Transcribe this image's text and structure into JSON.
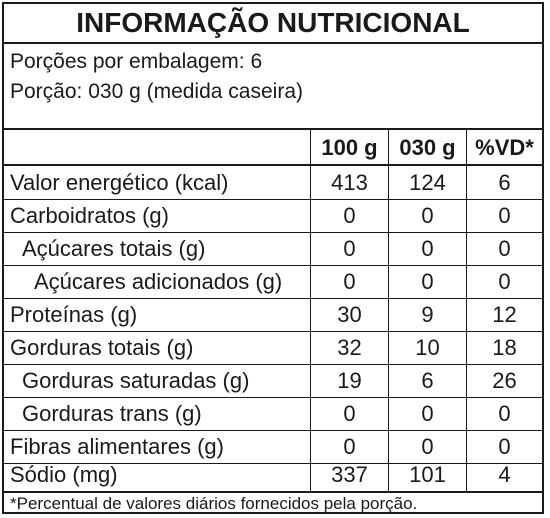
{
  "title": "INFORMAÇÃO NUTRICIONAL",
  "servings_per_package": "Porções por embalagem: 6",
  "serving_size": "Porção: 030 g (medida caseira)",
  "columns": [
    "100 g",
    "030 g",
    "%VD*"
  ],
  "rows": [
    {
      "label": "Valor energético (kcal)",
      "values": [
        "413",
        "124",
        "6"
      ]
    },
    {
      "label": "Carboidratos (g)",
      "values": [
        "0",
        "0",
        "0"
      ]
    },
    {
      "label": "Açúcares totais (g)",
      "values": [
        "0",
        "0",
        "0"
      ]
    },
    {
      "label": "Açúcares adicionados (g)",
      "values": [
        "0",
        "0",
        "0"
      ]
    },
    {
      "label": "Proteínas (g)",
      "values": [
        "30",
        "9",
        "12"
      ]
    },
    {
      "label": "Gorduras totais (g)",
      "values": [
        "32",
        "10",
        "18"
      ]
    },
    {
      "label": "Gorduras saturadas (g)",
      "values": [
        "19",
        "6",
        "26"
      ]
    },
    {
      "label": "Gorduras trans (g)",
      "values": [
        "0",
        "0",
        "0"
      ]
    },
    {
      "label": "Fibras alimentares (g)",
      "values": [
        "0",
        "0",
        "0"
      ]
    },
    {
      "label": "Sódio (mg)",
      "values": [
        "337",
        "101",
        "4"
      ]
    }
  ],
  "footnote": "*Percentual de valores diários fornecidos pela porção."
}
